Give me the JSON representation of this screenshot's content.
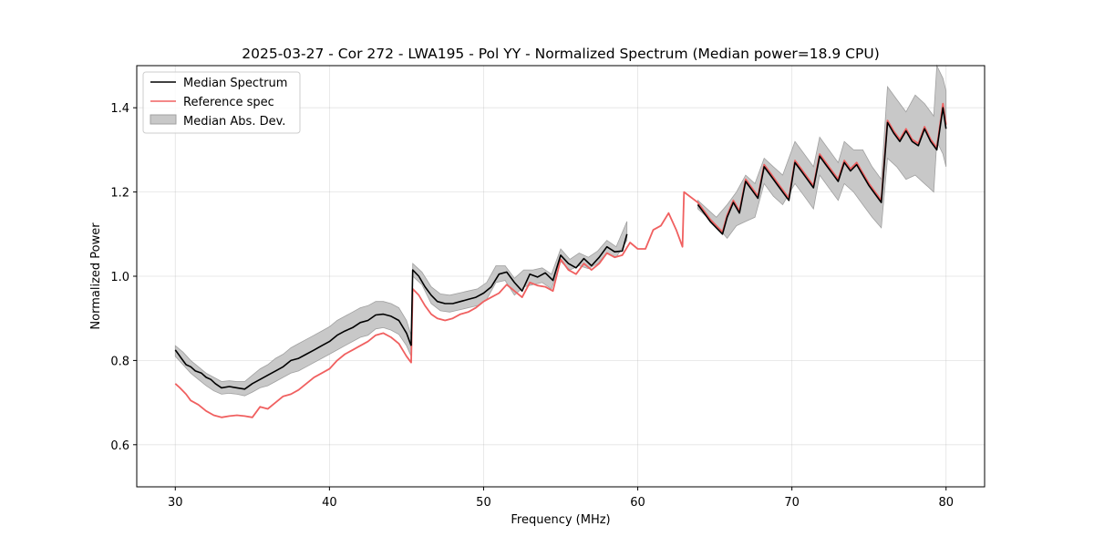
{
  "chart_data": {
    "type": "line",
    "title": "2025-03-27 - Cor 272 - LWA195 - Pol YY - Normalized Spectrum (Median power=18.9 CPU)",
    "xlabel": "Frequency (MHz)",
    "ylabel": "Normalized Power",
    "xlim": [
      27.5,
      82.5
    ],
    "ylim": [
      0.5,
      1.5
    ],
    "xticks": [
      30,
      40,
      50,
      60,
      70,
      80
    ],
    "yticks": [
      0.6,
      0.8,
      1.0,
      1.2,
      1.4
    ],
    "grid": true,
    "legend_position": "top-left",
    "legend": [
      "Median Spectrum",
      "Reference spec",
      "Median Abs. Dev."
    ],
    "colors": {
      "median": "#000000",
      "reference": "#f06060",
      "band": "#c8c8c8",
      "band_edge": "#a0a0a0"
    },
    "series": [
      {
        "name": "Median Spectrum",
        "segments": [
          {
            "x": [
              30.0,
              30.2,
              30.4,
              30.7,
              31.0,
              31.3,
              31.7,
              32.0,
              32.3,
              32.6,
              33.0,
              33.5,
              34.0,
              34.5,
              35.0,
              35.5,
              36.0,
              36.5,
              37.0,
              37.5,
              38.0,
              38.5,
              39.0,
              39.5,
              40.0,
              40.5,
              41.0,
              41.5,
              42.0,
              42.5,
              43.0,
              43.5,
              44.0,
              44.5,
              45.0,
              45.3
            ],
            "y": [
              0.825,
              0.815,
              0.805,
              0.79,
              0.785,
              0.775,
              0.77,
              0.76,
              0.755,
              0.745,
              0.735,
              0.738,
              0.735,
              0.732,
              0.745,
              0.755,
              0.765,
              0.775,
              0.785,
              0.8,
              0.805,
              0.815,
              0.825,
              0.835,
              0.845,
              0.86,
              0.87,
              0.878,
              0.89,
              0.895,
              0.908,
              0.91,
              0.905,
              0.895,
              0.865,
              0.835
            ]
          },
          {
            "x": [
              45.3,
              45.4,
              45.8,
              46.2,
              46.6,
              47.0,
              47.5,
              48.0,
              48.5,
              49.0,
              49.5,
              50.0,
              50.5,
              51.0,
              51.5,
              52.0,
              52.5,
              53.0,
              53.5,
              54.0,
              54.5,
              55.0,
              55.5,
              56.0,
              56.5,
              57.0,
              57.5,
              58.0,
              58.5,
              59.0,
              59.3
            ],
            "y": [
              0.835,
              1.015,
              1.0,
              0.975,
              0.955,
              0.94,
              0.935,
              0.935,
              0.94,
              0.945,
              0.95,
              0.96,
              0.975,
              1.005,
              1.01,
              0.985,
              0.965,
              1.005,
              0.998,
              1.008,
              0.99,
              1.05,
              1.03,
              1.02,
              1.042,
              1.025,
              1.045,
              1.07,
              1.058,
              1.06,
              1.1
            ]
          },
          {
            "x": [
              63.9,
              64.3,
              64.7,
              65.1,
              65.5,
              65.8,
              66.2,
              66.6,
              67.0,
              67.4,
              67.8,
              68.2,
              68.6,
              69.0,
              69.4,
              69.8,
              70.2,
              70.6,
              71.0,
              71.4,
              71.8,
              72.2,
              72.6,
              73.0,
              73.4,
              73.8,
              74.2,
              74.6,
              75.0,
              75.4,
              75.8,
              76.2,
              76.6,
              77.0,
              77.4,
              77.8,
              78.2,
              78.6,
              79.0,
              79.4,
              79.8,
              80.0
            ],
            "y": [
              1.17,
              1.15,
              1.13,
              1.115,
              1.1,
              1.14,
              1.175,
              1.15,
              1.225,
              1.205,
              1.185,
              1.26,
              1.24,
              1.22,
              1.2,
              1.18,
              1.27,
              1.25,
              1.23,
              1.21,
              1.285,
              1.265,
              1.245,
              1.225,
              1.27,
              1.25,
              1.265,
              1.24,
              1.215,
              1.195,
              1.175,
              1.365,
              1.34,
              1.32,
              1.345,
              1.32,
              1.31,
              1.35,
              1.32,
              1.3,
              1.4,
              1.35
            ]
          }
        ]
      },
      {
        "name": "Reference spec",
        "segments": [
          {
            "x": [
              30.0,
              30.3,
              30.7,
              31.0,
              31.5,
              32.0,
              32.5,
              33.0,
              33.5,
              34.0,
              34.5,
              35.0,
              35.5,
              36.0,
              36.5,
              37.0,
              37.5,
              38.0,
              38.5,
              39.0,
              39.5,
              40.0,
              40.5,
              41.0,
              41.5,
              42.0,
              42.5,
              43.0,
              43.5,
              44.0,
              44.5,
              45.0,
              45.3,
              45.4,
              45.8,
              46.2,
              46.6,
              47.0,
              47.5,
              48.0,
              48.5,
              49.0,
              49.5,
              50.0,
              50.5,
              51.0,
              51.5,
              52.0,
              52.5,
              53.0,
              53.5,
              54.0,
              54.5,
              55.0,
              55.5,
              56.0,
              56.5,
              57.0,
              57.5,
              58.0,
              58.5,
              59.0,
              59.5,
              60.0,
              60.5,
              61.0,
              61.5,
              62.0,
              62.5,
              62.9,
              63.0,
              63.9,
              64.3,
              64.7,
              65.1,
              65.5,
              65.8,
              66.2,
              66.6,
              67.0,
              67.4,
              67.8,
              68.2,
              68.6,
              69.0,
              69.4,
              69.8,
              70.2,
              70.6,
              71.0,
              71.4,
              71.8,
              72.2,
              72.6,
              73.0,
              73.4,
              73.8,
              74.2,
              74.6,
              75.0,
              75.4,
              75.8,
              76.2,
              76.6,
              77.0,
              77.4,
              77.8,
              78.2,
              78.6,
              79.0,
              79.4,
              79.8,
              80.0
            ],
            "y": [
              0.745,
              0.735,
              0.72,
              0.705,
              0.695,
              0.68,
              0.67,
              0.665,
              0.668,
              0.67,
              0.668,
              0.665,
              0.69,
              0.685,
              0.7,
              0.715,
              0.72,
              0.73,
              0.745,
              0.76,
              0.77,
              0.78,
              0.8,
              0.815,
              0.825,
              0.835,
              0.845,
              0.86,
              0.865,
              0.855,
              0.84,
              0.81,
              0.795,
              0.97,
              0.955,
              0.93,
              0.91,
              0.9,
              0.895,
              0.9,
              0.91,
              0.915,
              0.925,
              0.94,
              0.95,
              0.96,
              0.98,
              0.965,
              0.95,
              0.985,
              0.978,
              0.975,
              0.965,
              1.04,
              1.015,
              1.005,
              1.03,
              1.015,
              1.03,
              1.055,
              1.045,
              1.05,
              1.08,
              1.065,
              1.065,
              1.11,
              1.12,
              1.15,
              1.11,
              1.07,
              1.2,
              1.175,
              1.155,
              1.135,
              1.12,
              1.105,
              1.145,
              1.18,
              1.155,
              1.23,
              1.21,
              1.19,
              1.265,
              1.245,
              1.225,
              1.205,
              1.185,
              1.275,
              1.255,
              1.235,
              1.215,
              1.29,
              1.27,
              1.25,
              1.23,
              1.275,
              1.255,
              1.27,
              1.245,
              1.22,
              1.2,
              1.18,
              1.37,
              1.345,
              1.325,
              1.35,
              1.325,
              1.315,
              1.355,
              1.325,
              1.305,
              1.41,
              1.36
            ]
          }
        ]
      },
      {
        "name": "Median Abs. Dev.",
        "segments": [
          {
            "x": [
              30.0,
              30.5,
              31.0,
              31.5,
              32.0,
              32.5,
              33.0,
              33.5,
              34.0,
              34.5,
              35.0,
              35.5,
              36.0,
              36.5,
              37.0,
              37.5,
              38.0,
              38.5,
              39.0,
              39.5,
              40.0,
              40.5,
              41.0,
              41.5,
              42.0,
              42.5,
              43.0,
              43.5,
              44.0,
              44.5,
              45.0,
              45.3
            ],
            "upper": [
              0.835,
              0.82,
              0.8,
              0.785,
              0.77,
              0.76,
              0.75,
              0.752,
              0.75,
              0.75,
              0.765,
              0.78,
              0.79,
              0.805,
              0.815,
              0.83,
              0.84,
              0.85,
              0.86,
              0.87,
              0.88,
              0.895,
              0.905,
              0.915,
              0.925,
              0.93,
              0.94,
              0.94,
              0.935,
              0.925,
              0.895,
              0.86
            ],
            "lower": [
              0.81,
              0.79,
              0.77,
              0.755,
              0.74,
              0.728,
              0.72,
              0.722,
              0.72,
              0.716,
              0.725,
              0.735,
              0.74,
              0.75,
              0.76,
              0.77,
              0.775,
              0.785,
              0.795,
              0.805,
              0.815,
              0.825,
              0.835,
              0.845,
              0.855,
              0.86,
              0.875,
              0.878,
              0.872,
              0.862,
              0.835,
              0.81
            ]
          },
          {
            "x": [
              45.4,
              46.0,
              46.6,
              47.2,
              47.8,
              48.4,
              49.0,
              49.6,
              50.2,
              50.8,
              51.4,
              52.0,
              52.6,
              53.2,
              53.8,
              54.4,
              55.0,
              55.6,
              56.2,
              56.8,
              57.4,
              58.0,
              58.6,
              59.3
            ],
            "upper": [
              1.03,
              1.01,
              0.975,
              0.958,
              0.955,
              0.96,
              0.965,
              0.97,
              0.985,
              1.025,
              1.025,
              0.995,
              1.015,
              1.015,
              1.02,
              1.005,
              1.065,
              1.04,
              1.055,
              1.045,
              1.06,
              1.085,
              1.07,
              1.13
            ],
            "lower": [
              1.0,
              0.98,
              0.935,
              0.918,
              0.915,
              0.92,
              0.925,
              0.93,
              0.945,
              0.985,
              0.99,
              0.955,
              0.975,
              0.98,
              0.985,
              0.97,
              1.035,
              1.015,
              1.025,
              1.018,
              1.03,
              1.055,
              1.045,
              1.085
            ]
          },
          {
            "x": [
              63.9,
              64.5,
              65.1,
              65.8,
              66.4,
              67.0,
              67.6,
              68.2,
              68.8,
              69.4,
              70.2,
              70.8,
              71.4,
              71.8,
              72.4,
              73.0,
              73.4,
              74.0,
              74.6,
              75.2,
              75.8,
              76.2,
              76.8,
              77.4,
              78.0,
              78.6,
              79.2,
              79.4,
              79.8,
              80.0
            ],
            "upper": [
              1.18,
              1.16,
              1.14,
              1.17,
              1.2,
              1.24,
              1.22,
              1.28,
              1.26,
              1.24,
              1.32,
              1.29,
              1.26,
              1.33,
              1.3,
              1.27,
              1.32,
              1.3,
              1.3,
              1.26,
              1.23,
              1.45,
              1.42,
              1.39,
              1.43,
              1.41,
              1.38,
              1.5,
              1.47,
              1.44
            ],
            "lower": [
              1.16,
              1.14,
              1.12,
              1.09,
              1.12,
              1.13,
              1.14,
              1.22,
              1.19,
              1.17,
              1.22,
              1.19,
              1.16,
              1.24,
              1.21,
              1.18,
              1.22,
              1.2,
              1.17,
              1.14,
              1.115,
              1.28,
              1.26,
              1.23,
              1.24,
              1.22,
              1.2,
              1.32,
              1.29,
              1.26
            ]
          }
        ]
      }
    ]
  }
}
